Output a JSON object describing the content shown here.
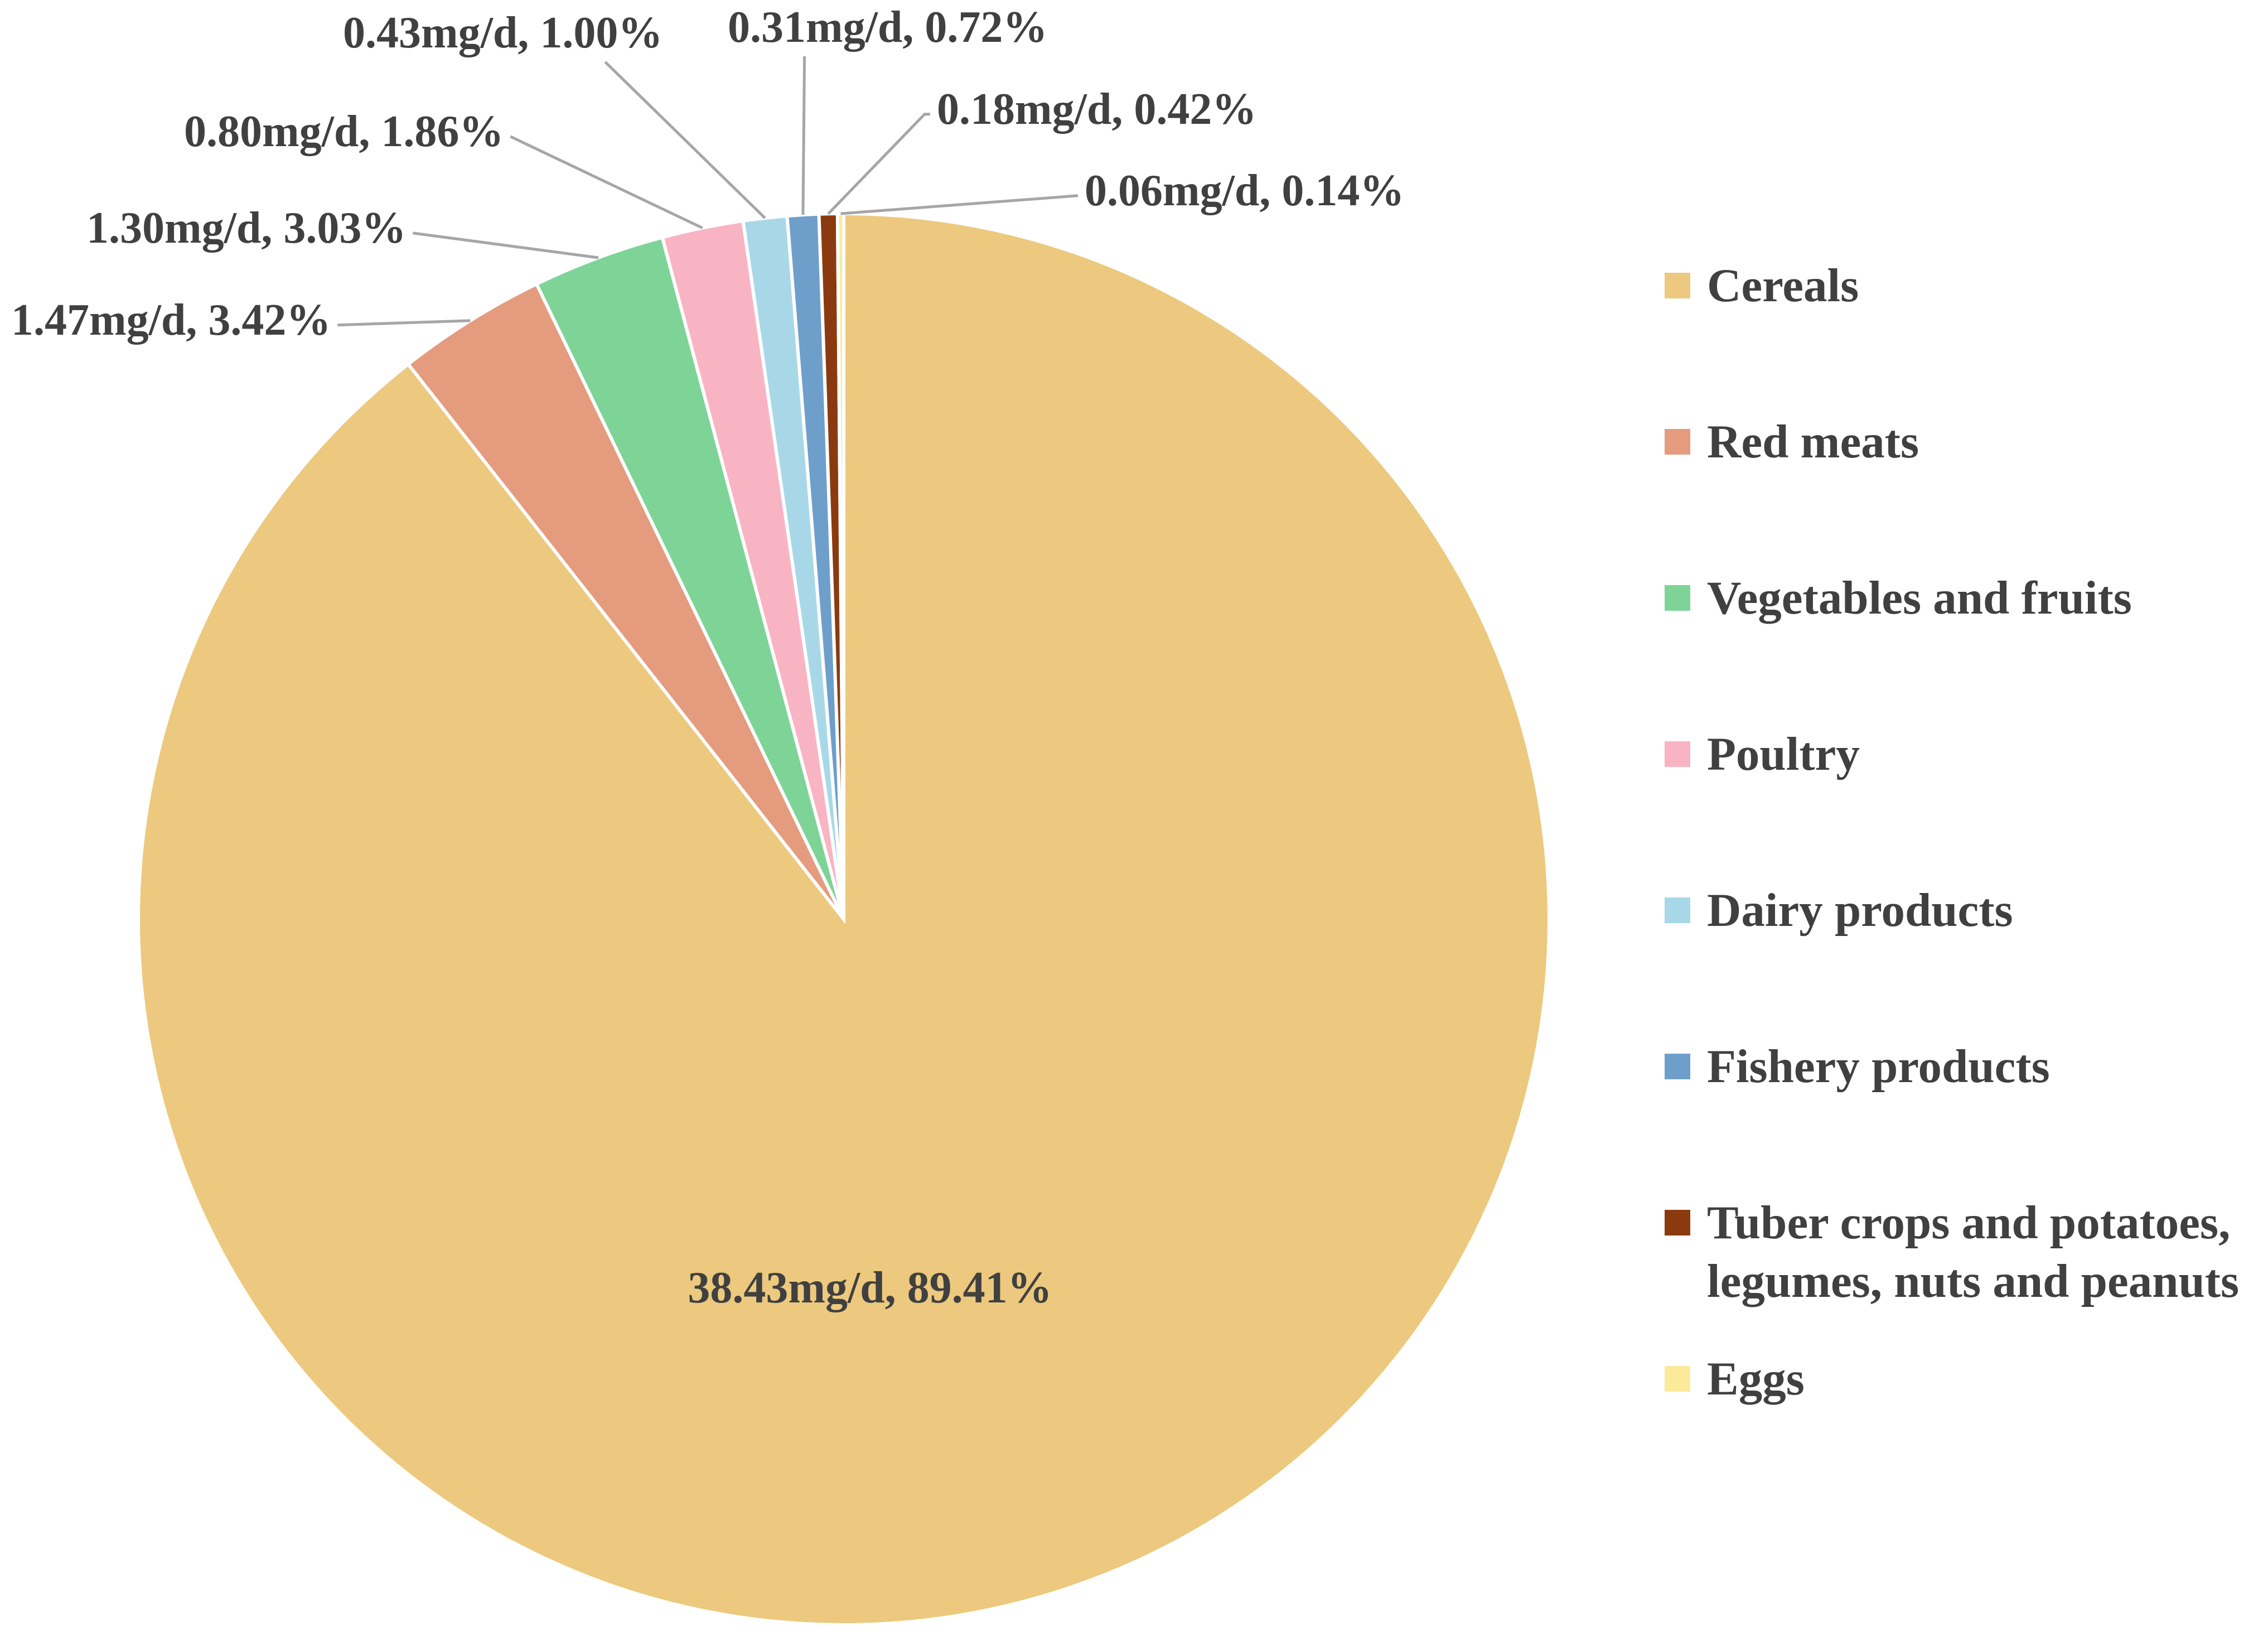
{
  "chart_data": {
    "type": "pie",
    "title": "",
    "unit": "mg/d",
    "start_angle_deg": 0,
    "direction": "clockwise",
    "slices": [
      {
        "name": "Cereals",
        "value": 38.43,
        "percent": 89.41,
        "label": "38.43mg/d, 89.41%",
        "color": "#ECC97E"
      },
      {
        "name": "Red meats",
        "value": 1.47,
        "percent": 3.42,
        "label": "1.47mg/d, 3.42%",
        "color": "#E49B7E"
      },
      {
        "name": "Vegetables and fruits",
        "value": 1.3,
        "percent": 3.03,
        "label": "1.30mg/d, 3.03%",
        "color": "#7ED397"
      },
      {
        "name": "Poultry",
        "value": 0.8,
        "percent": 1.86,
        "label": "0.80mg/d, 1.86%",
        "color": "#F8B4C3"
      },
      {
        "name": "Dairy products",
        "value": 0.43,
        "percent": 1.0,
        "label": "0.43mg/d, 1.00%",
        "color": "#A8D8E8"
      },
      {
        "name": "Fishery products",
        "value": 0.31,
        "percent": 0.72,
        "label": "0.31mg/d, 0.72%",
        "color": "#6E9FCB"
      },
      {
        "name": "Tuber crops and potatoes, legumes, nuts and peanuts",
        "legend_lines": [
          "Tuber crops and potatoes,",
          "legumes, nuts and peanuts"
        ],
        "value": 0.18,
        "percent": 0.42,
        "label": "0.18mg/d, 0.42%",
        "color": "#8B3A0F"
      },
      {
        "name": "Eggs",
        "value": 0.06,
        "percent": 0.14,
        "label": "0.06mg/d, 0.14%",
        "color": "#FBEA9A"
      }
    ],
    "legend_position": "right"
  }
}
